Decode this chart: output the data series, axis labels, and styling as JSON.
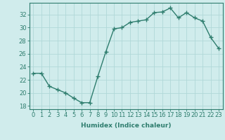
{
  "x": [
    0,
    1,
    2,
    3,
    4,
    5,
    6,
    7,
    8,
    9,
    10,
    11,
    12,
    13,
    14,
    15,
    16,
    17,
    18,
    19,
    20,
    21,
    22,
    23
  ],
  "y": [
    23,
    23,
    21,
    20.5,
    20,
    19.2,
    18.5,
    18.5,
    22.5,
    26.3,
    29.8,
    30,
    30.8,
    31,
    31.2,
    32.3,
    32.4,
    33,
    31.5,
    32.3,
    31.5,
    31,
    28.5,
    26.8
  ],
  "line_color": "#2e7d6e",
  "marker": "+",
  "bg_color": "#d0ecec",
  "grid_color": "#b0d8d8",
  "xlabel": "Humidex (Indice chaleur)",
  "ylim": [
    17.5,
    33.8
  ],
  "xlim": [
    -0.5,
    23.5
  ],
  "yticks": [
    18,
    20,
    22,
    24,
    26,
    28,
    30,
    32
  ],
  "xtick_labels": [
    "0",
    "1",
    "2",
    "3",
    "4",
    "5",
    "6",
    "7",
    "8",
    "9",
    "10",
    "11",
    "12",
    "13",
    "14",
    "15",
    "16",
    "17",
    "18",
    "19",
    "20",
    "21",
    "22",
    "23"
  ],
  "xlabel_fontsize": 6.5,
  "tick_fontsize": 6.0,
  "line_width": 1.0,
  "marker_size": 4.0,
  "marker_edge_width": 1.0
}
